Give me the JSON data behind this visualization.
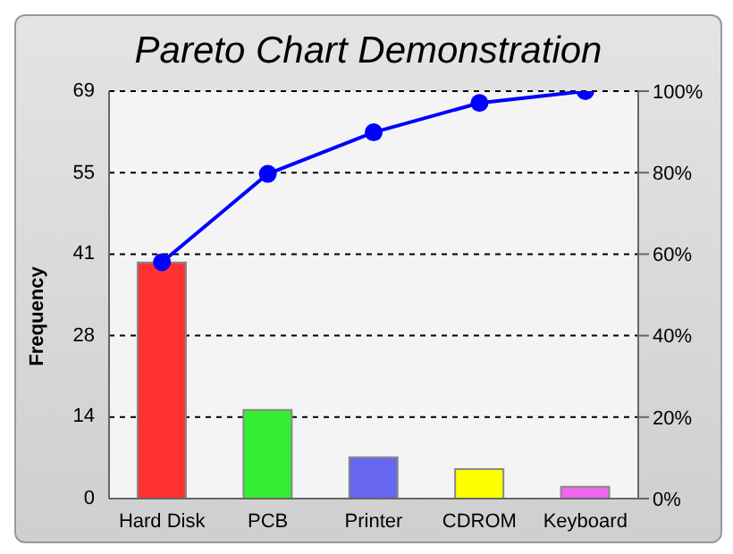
{
  "chart_data": {
    "type": "bar",
    "title": "Pareto Chart Demonstration",
    "ylabel": "Frequency",
    "categories": [
      "Hard Disk",
      "PCB",
      "Printer",
      "CDROM",
      "Keyboard"
    ],
    "series": [
      {
        "type": "bar",
        "values": [
          40,
          15,
          7,
          5,
          2
        ],
        "colors": [
          "#ff3333",
          "#33ee33",
          "#6666ee",
          "#ffff00",
          "#ee66ee"
        ]
      },
      {
        "type": "line",
        "axis": "y2",
        "color": "#0000ff",
        "values": [
          58,
          79.7,
          89.9,
          97.1,
          100
        ]
      }
    ],
    "ylim": [
      0,
      69
    ],
    "yticks": [
      0,
      {
        "value": 13.8,
        "label": "14"
      },
      {
        "value": 27.6,
        "label": "28"
      },
      {
        "value": 41.4,
        "label": "41"
      },
      {
        "value": 55.2,
        "label": "55"
      },
      69
    ],
    "y2lim": [
      0,
      100
    ],
    "y2ticks": [
      {
        "value": 0,
        "label": "0%"
      },
      {
        "value": 20,
        "label": "20%"
      },
      {
        "value": 40,
        "label": "40%"
      },
      {
        "value": 60,
        "label": "60%"
      },
      {
        "value": 80,
        "label": "80%"
      },
      {
        "value": 100,
        "label": "100%"
      }
    ],
    "grid": "y",
    "marker": "circle",
    "line_style": "solid",
    "legend": false
  }
}
